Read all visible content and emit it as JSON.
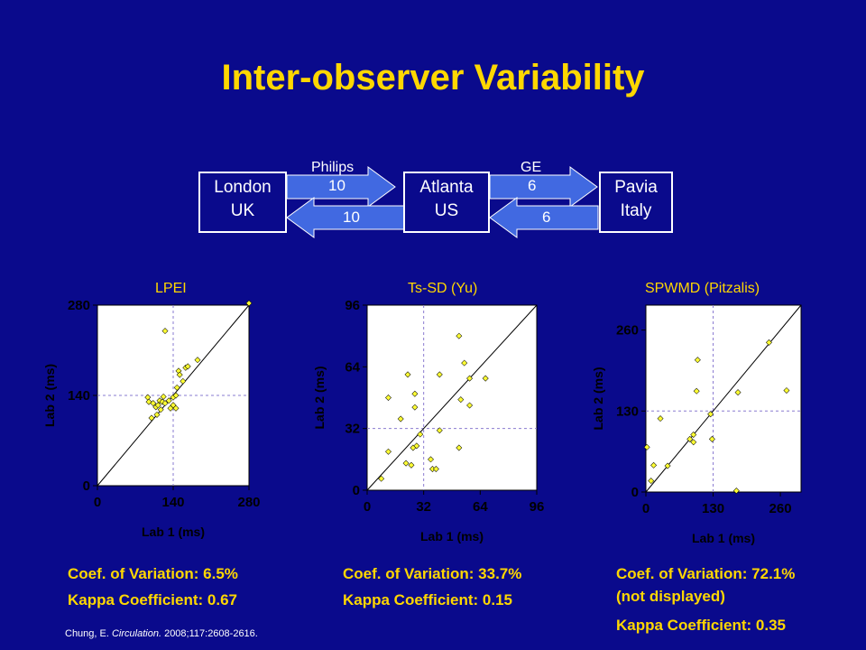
{
  "title": "Inter-observer Variability",
  "flow": {
    "london": [
      "London",
      "UK"
    ],
    "atlanta": [
      "Atlanta",
      "US"
    ],
    "pavia": [
      "Pavia",
      "Italy"
    ],
    "vendor_left": "Philips",
    "vendor_right": "GE",
    "left_forward": "10",
    "left_back": "10",
    "right_forward": "6",
    "right_back": "6"
  },
  "chart_data": [
    {
      "type": "scatter",
      "title": "LPEI",
      "xlabel": "Lab 1 (ms)",
      "ylabel": "Lab 2 (ms)",
      "xlim": [
        0,
        280
      ],
      "ylim": [
        0,
        280
      ],
      "xticks": [
        0,
        140,
        280
      ],
      "yticks": [
        0,
        140,
        280
      ],
      "mean_x": 140,
      "mean_y": 140,
      "points": [
        [
          93,
          137
        ],
        [
          95,
          130
        ],
        [
          100,
          105
        ],
        [
          103,
          128
        ],
        [
          108,
          122
        ],
        [
          110,
          110
        ],
        [
          112,
          125
        ],
        [
          115,
          132
        ],
        [
          117,
          118
        ],
        [
          120,
          130
        ],
        [
          122,
          138
        ],
        [
          125,
          128
        ],
        [
          132,
          132
        ],
        [
          135,
          120
        ],
        [
          140,
          137
        ],
        [
          145,
          140
        ],
        [
          147,
          152
        ],
        [
          150,
          178
        ],
        [
          152,
          172
        ],
        [
          158,
          162
        ],
        [
          163,
          183
        ],
        [
          167,
          185
        ],
        [
          185,
          195
        ],
        [
          145,
          120
        ],
        [
          140,
          125
        ],
        [
          125,
          240
        ],
        [
          280,
          283
        ]
      ]
    },
    {
      "type": "scatter",
      "title": "Ts-SD (Yu)",
      "xlabel": "Lab 1 (ms)",
      "ylabel": "Lab 2 (ms)",
      "xlim": [
        0,
        96
      ],
      "ylim": [
        0,
        96
      ],
      "xticks": [
        0,
        32,
        64,
        96
      ],
      "yticks": [
        0,
        32,
        64,
        96
      ],
      "mean_x": 32,
      "mean_y": 32,
      "points": [
        [
          8,
          6
        ],
        [
          12,
          20
        ],
        [
          12,
          48
        ],
        [
          19,
          37
        ],
        [
          22,
          14
        ],
        [
          23,
          60
        ],
        [
          25,
          13
        ],
        [
          26,
          22
        ],
        [
          28,
          23
        ],
        [
          27,
          50
        ],
        [
          27,
          43
        ],
        [
          30,
          29
        ],
        [
          36,
          16
        ],
        [
          37,
          11
        ],
        [
          39,
          11
        ],
        [
          41,
          31
        ],
        [
          41,
          60
        ],
        [
          52,
          22
        ],
        [
          52,
          80
        ],
        [
          53,
          47
        ],
        [
          55,
          66
        ],
        [
          58,
          44
        ],
        [
          58,
          58
        ],
        [
          67,
          58
        ]
      ]
    },
    {
      "type": "scatter",
      "title": "SPWMD (Pitzalis)",
      "xlabel": "Lab 1 (ms)",
      "ylabel": "Lab 2 (ms)",
      "xlim": [
        0,
        300
      ],
      "ylim": [
        0,
        300
      ],
      "xticks": [
        0,
        130,
        260
      ],
      "yticks": [
        0,
        130,
        260
      ],
      "mean_x": 130,
      "mean_y": 130,
      "points": [
        [
          2,
          72
        ],
        [
          10,
          18
        ],
        [
          15,
          43
        ],
        [
          28,
          118
        ],
        [
          42,
          42
        ],
        [
          85,
          85
        ],
        [
          92,
          80
        ],
        [
          92,
          92
        ],
        [
          98,
          162
        ],
        [
          100,
          212
        ],
        [
          125,
          125
        ],
        [
          128,
          85
        ],
        [
          175,
          2
        ],
        [
          178,
          160
        ],
        [
          238,
          240
        ],
        [
          272,
          163
        ]
      ]
    }
  ],
  "stats": [
    {
      "cov": "Coef. of Variation: 6.5%",
      "kappa": "Kappa Coefficient: 0.67"
    },
    {
      "cov": "Coef. of Variation: 33.7%",
      "kappa": "Kappa Coefficient: 0.15"
    },
    {
      "cov": "Coef. of Variation: 72.1%",
      "note": "(not displayed)",
      "kappa": "Kappa Coefficient: 0.35"
    }
  ],
  "citation": {
    "author": "Chung, E. ",
    "journal": "Circulation.",
    "rest": " 2008;117:2608-2616."
  },
  "colors": {
    "background": "#0a0a8c",
    "title": "#ffd700",
    "arrow": "#4169e1",
    "point": "#ffff33"
  }
}
